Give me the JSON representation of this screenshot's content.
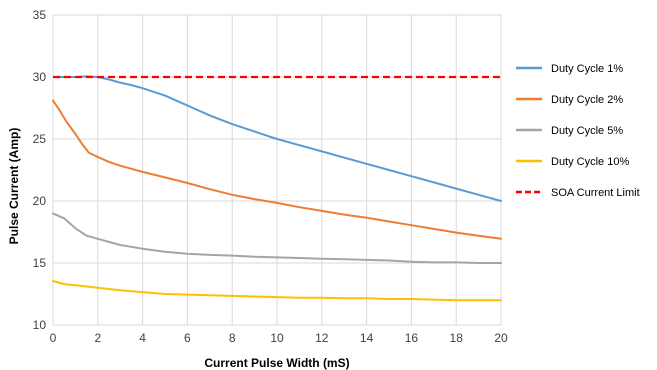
{
  "chart_data": {
    "type": "line",
    "title": "",
    "xlabel": "Current Pulse Width (mS)",
    "ylabel": "Pulse Current (Amp)",
    "xlim": [
      0,
      20
    ],
    "ylim": [
      10,
      35
    ],
    "xticks": [
      0,
      2,
      4,
      6,
      8,
      10,
      12,
      14,
      16,
      18,
      20
    ],
    "yticks": [
      10,
      15,
      20,
      25,
      30,
      35
    ],
    "grid": true,
    "legend_position": "right",
    "series": [
      {
        "name": "Duty Cycle 1%",
        "color": "#5b9bd5",
        "dash": false,
        "x": [
          0.2,
          0.5,
          1,
          1.5,
          2,
          2.5,
          3,
          3.5,
          4,
          4.5,
          5,
          5.5,
          6,
          6.5,
          7,
          7.5,
          8,
          8.5,
          9,
          9.5,
          10,
          11,
          12,
          13,
          14,
          15,
          16,
          17,
          18,
          19,
          20
        ],
        "y": [
          30,
          30,
          30,
          30.05,
          30,
          29.8,
          29.55,
          29.35,
          29.1,
          28.8,
          28.5,
          28.1,
          27.7,
          27.3,
          26.9,
          26.55,
          26.2,
          25.9,
          25.6,
          25.3,
          25.0,
          24.5,
          24.0,
          23.5,
          23.0,
          22.5,
          22.0,
          21.5,
          21.0,
          20.5,
          20.0
        ]
      },
      {
        "name": "Duty Cycle 2%",
        "color": "#ed7d31",
        "dash": false,
        "x": [
          0,
          0.3,
          0.6,
          1,
          1.3,
          1.6,
          2,
          2.5,
          3,
          3.5,
          4,
          5,
          6,
          7,
          8,
          9,
          10,
          11,
          12,
          13,
          14,
          15,
          16,
          17,
          18,
          19,
          20
        ],
        "y": [
          28.1,
          27.3,
          26.4,
          25.4,
          24.6,
          23.9,
          23.55,
          23.15,
          22.85,
          22.6,
          22.35,
          21.9,
          21.45,
          20.95,
          20.5,
          20.15,
          19.85,
          19.5,
          19.2,
          18.9,
          18.65,
          18.35,
          18.05,
          17.75,
          17.45,
          17.2,
          16.95
        ]
      },
      {
        "name": "Duty Cycle 5%",
        "color": "#a5a5a5",
        "dash": false,
        "x": [
          0,
          0.5,
          1,
          1.5,
          2,
          3,
          4,
          5,
          6,
          7,
          8,
          9,
          10,
          11,
          12,
          13,
          14,
          15,
          16,
          17,
          18,
          19,
          20
        ],
        "y": [
          19.0,
          18.6,
          17.8,
          17.2,
          16.95,
          16.45,
          16.15,
          15.9,
          15.75,
          15.65,
          15.6,
          15.5,
          15.45,
          15.4,
          15.35,
          15.3,
          15.25,
          15.2,
          15.1,
          15.05,
          15.05,
          15.0,
          15.0
        ]
      },
      {
        "name": "Duty Cycle 10%",
        "color": "#ffc000",
        "dash": false,
        "x": [
          0,
          0.5,
          1,
          2,
          3,
          4,
          5,
          6,
          7,
          8,
          9,
          10,
          11,
          12,
          13,
          14,
          15,
          16,
          17,
          18,
          19,
          20
        ],
        "y": [
          13.55,
          13.3,
          13.2,
          13.0,
          12.8,
          12.65,
          12.5,
          12.45,
          12.4,
          12.35,
          12.3,
          12.25,
          12.2,
          12.2,
          12.15,
          12.15,
          12.1,
          12.1,
          12.05,
          12.0,
          12.0,
          12.0
        ]
      },
      {
        "name": "SOA Current Limit",
        "color": "#ff0000",
        "dash": true,
        "x": [
          0,
          20
        ],
        "y": [
          30,
          30
        ]
      }
    ]
  }
}
